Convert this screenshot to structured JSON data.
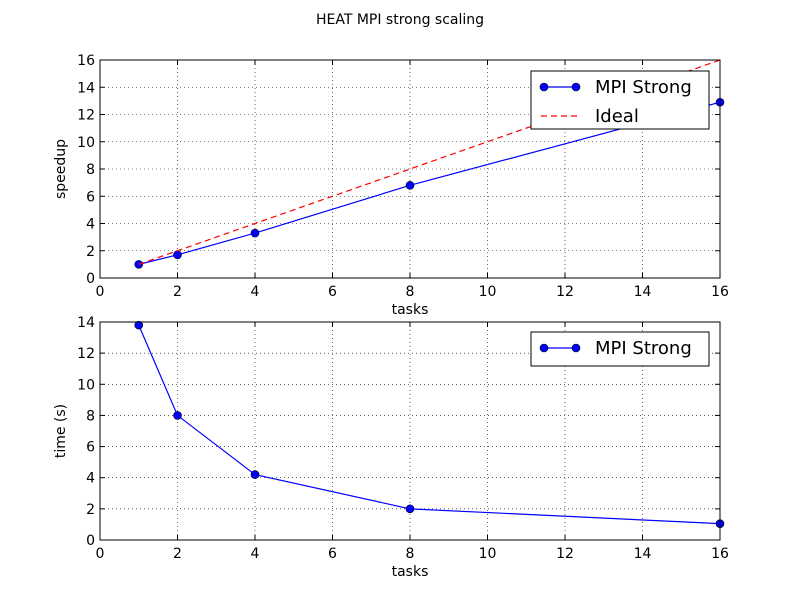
{
  "figure": {
    "title": "HEAT  MPI  strong scaling"
  },
  "chart_data": [
    {
      "type": "line",
      "xlabel": "tasks",
      "ylabel": "speedup",
      "xlim": [
        0,
        16
      ],
      "ylim": [
        0,
        16
      ],
      "xticks": [
        0,
        2,
        4,
        6,
        8,
        10,
        12,
        14,
        16
      ],
      "yticks": [
        0,
        2,
        4,
        6,
        8,
        10,
        12,
        14,
        16
      ],
      "grid": true,
      "legend_position": "top-right",
      "series": [
        {
          "name": "MPI Strong",
          "color": "#0000ff",
          "style": "solid",
          "marker": "circle",
          "x": [
            1,
            2,
            4,
            8,
            16
          ],
          "y": [
            1,
            1.7,
            3.3,
            6.8,
            12.9
          ]
        },
        {
          "name": "Ideal",
          "color": "#ff0000",
          "style": "dashed",
          "marker": "none",
          "x": [
            1,
            16
          ],
          "y": [
            1,
            16
          ]
        }
      ]
    },
    {
      "type": "line",
      "xlabel": "tasks",
      "ylabel": "time (s)",
      "xlim": [
        0,
        16
      ],
      "ylim": [
        0,
        14
      ],
      "xticks": [
        0,
        2,
        4,
        6,
        8,
        10,
        12,
        14,
        16
      ],
      "yticks": [
        0,
        2,
        4,
        6,
        8,
        10,
        12,
        14
      ],
      "grid": true,
      "legend_position": "top-right",
      "series": [
        {
          "name": "MPI Strong",
          "color": "#0000ff",
          "style": "solid",
          "marker": "circle",
          "x": [
            1,
            2,
            4,
            8,
            16
          ],
          "y": [
            13.8,
            8.0,
            4.2,
            2.0,
            1.05
          ]
        }
      ]
    }
  ]
}
